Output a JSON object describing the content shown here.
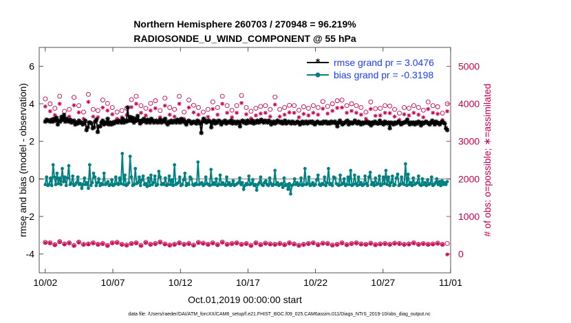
{
  "chart_data": {
    "type": "line",
    "title_line1": "Northern Hemisphere 260703 / 270948 = 96.219%",
    "title_line2": "RADIOSONDE_U_WIND_COMPONENT @ 55 hPa",
    "xlabel": "Oct.01,2019 00:00:00 start",
    "ylabel_left": "rmse and bias (model - observation)",
    "ylabel_right": "# of obs: o=possible; ∗=assimilated",
    "footer": "data file: /Users/raeder/DAI/ATM_forcXX/CAM6_setup/f.e21.FHIST_BGC.f09_025.CAM6assim.011/Diags_NTrS_2019-10/obs_diag_output.nc",
    "x_ticks": [
      "10/02",
      "10/07",
      "10/12",
      "10/17",
      "10/22",
      "10/27",
      "11/01"
    ],
    "x_tick_days": [
      1,
      6,
      11,
      16,
      21,
      26,
      31
    ],
    "xlim": [
      0.55,
      31
    ],
    "ylim_left": [
      -5,
      7
    ],
    "y_ticks_left": [
      -4,
      -2,
      0,
      2,
      4,
      6
    ],
    "ylim_right": [
      -500,
      5500
    ],
    "y_ticks_right": [
      0,
      1000,
      2000,
      3000,
      4000,
      5000
    ],
    "legend_position": "top-right",
    "colors": {
      "rmse": "#000000",
      "bias": "#008080",
      "obs": "#c8004e",
      "zero_line": "#b3b3b3",
      "legend_text": "#1a3cff"
    },
    "series": [
      {
        "name": "rmse grand pr = 3.0476",
        "axis": "left",
        "values": [
          3.05,
          3.15,
          3.1,
          3.1,
          3.05,
          3.15,
          3.05,
          3.2,
          3.1,
          3.25,
          2.9,
          3.1,
          3.05,
          3.3,
          3.15,
          3.4,
          3.05,
          3.2,
          3.1,
          3.05,
          3.15,
          3.0,
          3.05,
          3.1,
          2.9,
          3.0,
          2.95,
          3.1,
          3.0,
          3.0,
          2.9,
          2.95,
          3.1,
          2.6,
          2.75,
          3.0,
          3.0,
          2.95,
          2.7,
          2.75,
          3.05,
          3.15,
          2.5,
          2.8,
          2.8,
          3.0,
          3.1,
          2.9,
          3.0,
          2.95,
          3.2,
          2.9,
          3.0,
          2.9,
          3.0,
          2.95,
          3.05,
          3.05,
          3.0,
          3.1,
          3.05,
          3.0,
          3.2,
          3.0,
          3.1,
          3.05,
          3.8,
          3.1,
          3.3,
          3.1,
          3.25,
          3.0,
          3.2,
          3.1,
          3.35,
          3.1,
          2.95,
          3.1,
          3.05,
          3.2,
          3.1,
          3.0,
          3.15,
          3.05,
          3.0,
          3.2,
          3.1,
          3.0,
          3.05,
          3.1,
          3.0,
          3.05,
          3.15,
          3.0,
          3.1,
          3.05,
          3.2,
          3.0,
          2.9,
          3.05,
          3.0,
          3.1,
          3.0,
          3.05,
          3.1,
          3.0,
          3.15,
          3.05,
          3.0,
          3.2,
          3.05,
          3.1,
          3.0,
          2.9,
          3.05,
          3.1,
          3.05,
          2.95,
          3.0,
          3.05,
          3.0,
          2.95,
          3.1,
          3.05,
          2.95,
          2.45,
          3.05,
          3.2,
          3.1,
          3.0,
          3.05,
          3.1,
          3.05,
          2.75,
          3.0,
          3.1,
          2.95,
          3.05,
          3.0,
          3.1,
          3.05,
          2.9,
          3.0,
          3.05,
          3.1,
          2.95,
          3.0,
          3.05,
          3.0,
          3.1,
          2.95,
          3.05,
          3.0,
          2.95,
          3.05,
          3.0,
          2.8,
          3.05,
          3.1,
          3.0,
          3.05,
          2.95,
          3.1,
          3.0,
          3.05,
          3.0,
          3.1,
          2.95,
          3.05,
          3.0,
          3.1,
          3.0,
          3.05,
          3.15,
          3.05,
          3.0,
          3.1,
          3.05,
          3.0,
          3.1,
          3.05,
          2.9,
          3.0,
          3.05,
          2.95,
          3.0,
          3.1,
          3.05,
          3.0,
          3.05,
          2.95,
          3.0,
          3.1,
          2.95,
          3.0,
          3.05,
          3.0,
          2.95,
          3.05,
          3.0,
          2.95,
          3.0,
          3.05,
          3.0,
          2.9,
          3.0,
          3.05,
          2.95,
          3.0,
          3.05,
          2.95,
          3.0,
          3.05,
          3.0,
          3.05,
          2.95,
          2.9,
          3.0,
          3.05,
          3.0,
          2.95,
          3.0,
          2.95,
          3.05,
          3.0,
          3.05,
          2.95,
          3.0,
          2.95,
          3.05,
          3.0,
          3.0,
          3.05,
          2.95,
          2.8,
          3.0,
          3.1,
          3.0,
          2.9,
          2.95,
          3.0,
          3.05,
          3.1,
          2.9,
          3.0,
          3.0,
          2.95,
          3.0,
          3.1,
          3.0,
          2.95,
          3.05,
          3.0,
          2.9,
          3.0,
          2.95,
          3.0,
          3.0,
          3.05,
          2.95,
          3.0,
          2.85,
          3.0,
          2.95,
          3.05,
          3.0,
          2.95,
          2.95,
          3.1,
          3.0,
          2.95,
          2.9,
          3.05,
          3.0,
          2.95,
          3.0,
          2.7,
          3.0,
          2.95,
          2.9,
          3.0,
          2.95,
          3.0,
          3.05,
          3.0,
          2.9,
          2.95,
          3.0,
          3.0,
          3.05,
          3.15,
          3.0,
          2.9,
          3.0,
          2.95,
          3.0,
          2.9,
          3.0,
          2.95,
          3.05,
          3.0,
          2.85,
          3.0,
          2.95,
          3.0,
          3.05,
          3.0,
          2.95,
          2.9,
          3.0,
          3.1,
          3.0,
          2.9,
          3.05,
          3.0,
          2.95,
          2.9,
          3.0,
          3.05,
          3.0,
          2.95,
          2.7,
          2.6
        ]
      },
      {
        "name": "bias grand pr = -0.3198",
        "axis": "left",
        "values": [
          -0.3,
          0.1,
          -0.35,
          -0.3,
          0.05,
          -0.35,
          0.75,
          0.1,
          -0.3,
          0.3,
          -0.25,
          0.05,
          -0.3,
          0.55,
          -0.15,
          0.1,
          -0.35,
          0.05,
          0.7,
          -0.3,
          -0.25,
          0.15,
          -0.35,
          -0.3,
          -0.2,
          0.1,
          -0.3,
          -0.25,
          -0.5,
          -0.3,
          0.05,
          -0.3,
          -0.2,
          -0.5,
          0.75,
          -0.35,
          -0.2,
          0.3,
          0.1,
          -0.35,
          -0.2,
          0.0,
          -0.35,
          -0.25,
          -0.3,
          0.3,
          -0.3,
          -0.25,
          -0.15,
          -0.35,
          -0.3,
          -0.05,
          -0.35,
          -0.3,
          0.1,
          -0.25,
          -0.3,
          0.05,
          -0.25,
          1.35,
          -0.3,
          0.2,
          -0.35,
          -0.3,
          -0.2,
          1.2,
          0.1,
          -0.35,
          -0.3,
          0.55,
          -0.25,
          -0.2,
          0.1,
          -0.35,
          -0.05,
          0.15,
          -0.3,
          -0.25,
          -0.4,
          0.05,
          -0.35,
          0.2,
          -0.3,
          -0.2,
          0.15,
          -0.35,
          -0.3,
          0.4,
          0.1,
          -0.3,
          -0.25,
          -0.3,
          0.05,
          -0.35,
          -0.3,
          0.15,
          -0.3,
          -0.05,
          -0.35,
          0.75,
          -0.3,
          -0.25,
          -0.2,
          0.1,
          -0.35,
          -0.3,
          -0.05,
          0.3,
          -0.35,
          -0.25,
          -0.3,
          0.1,
          0.0,
          -0.3,
          -0.35,
          -0.25,
          -0.3,
          0.9,
          -0.3,
          -0.25,
          -0.2,
          -0.35,
          -0.3,
          0.1,
          -0.25,
          -0.3,
          -0.35,
          0.5,
          -0.3,
          -0.2,
          -0.3,
          0.0,
          -0.35,
          -0.3,
          0.2,
          -0.3,
          -0.2,
          -0.3,
          -0.35,
          0.1,
          -0.3,
          -0.2,
          -0.35,
          -0.3,
          -0.1,
          -0.35,
          -0.3,
          -0.25,
          -0.2,
          0.05,
          -0.3,
          -0.2,
          -0.55,
          -0.35,
          -0.25,
          -0.3,
          0.15,
          -0.3,
          -0.25,
          -0.05,
          -0.35,
          -0.3,
          -0.6,
          -0.3,
          -0.2,
          0.1,
          -0.3,
          -0.35,
          -0.2,
          -0.1,
          -0.3,
          -0.35,
          0.05,
          -0.25,
          -0.35,
          -0.3,
          0.45,
          -0.3,
          -0.2,
          -0.35,
          -0.3,
          -0.25,
          -0.45,
          0.05,
          -0.35,
          -0.3,
          -0.55,
          -0.25,
          -0.8,
          -0.35,
          -0.3,
          0.0,
          -0.3,
          -0.2,
          -0.35,
          -0.3,
          0.05,
          -0.35,
          -0.3,
          0.55,
          -0.3,
          -0.25,
          0.1,
          -0.35,
          -0.3,
          -0.2,
          -0.35,
          -0.3,
          -0.05,
          0.2,
          -0.3,
          -0.35,
          -0.25,
          -0.3,
          0.1,
          -0.35,
          -0.2,
          0.55,
          -0.3,
          -0.25,
          -0.35,
          0.1,
          0.05,
          -0.25,
          -0.3,
          -0.35,
          0.2,
          -0.3,
          -0.25,
          0.0,
          -0.35,
          -0.3,
          0.1,
          -0.3,
          0.45,
          -0.35,
          -0.3,
          0.2,
          -0.25,
          -0.35,
          0.1,
          -0.3,
          -0.2,
          -0.35,
          -0.3,
          0.15,
          -0.25,
          -0.35,
          0.1,
          0.35,
          -0.3,
          -0.2,
          -0.35,
          0.05,
          -0.3,
          -0.25,
          0.15,
          -0.35,
          -0.3,
          0.1,
          -0.25,
          0.45,
          -0.3,
          0.1,
          -0.35,
          -0.2,
          0.15,
          -0.35,
          -0.3,
          0.05,
          0.25,
          -0.35,
          -0.3,
          0.1,
          -0.25,
          -0.3,
          0.8,
          -0.35,
          0.25,
          -0.3,
          -0.2,
          -0.35,
          0.05,
          -0.3,
          -0.25,
          -0.2,
          0.15,
          -0.3,
          -0.35,
          0.0,
          -0.3,
          -0.2,
          -0.35,
          -0.05,
          -0.3,
          -0.25,
          0.1,
          -0.35,
          -0.3,
          -0.2,
          0.0,
          -0.3,
          -0.15,
          -0.35,
          -0.1,
          -0.3,
          -0.2,
          -0.3,
          -0.15
        ]
      },
      {
        "name": "possible",
        "axis": "right",
        "marker": "o",
        "values": [
          4130,
          4000,
          3880,
          4200,
          3800,
          3850,
          4170,
          3950,
          3780,
          4250,
          3850,
          3820,
          4100,
          4010,
          3900,
          3780,
          3820,
          3880,
          4110,
          4200,
          3950,
          3880,
          4010,
          4080,
          3820,
          4150,
          3900,
          3850,
          4200,
          3780,
          4100,
          3960,
          3900,
          3780,
          3850,
          4050,
          3900,
          4200,
          3950,
          3830,
          3950,
          4220,
          3900,
          3800,
          3880,
          3930,
          3950,
          3850,
          4180,
          3850,
          3900,
          3960,
          3950,
          3830,
          3920,
          3880,
          3950,
          3900,
          4060,
          3930,
          4000,
          4080,
          4100,
          3950,
          4000,
          3950,
          3900,
          3780,
          4050,
          3870,
          3880,
          3950,
          3940,
          3850,
          3750,
          3900,
          3880,
          3950,
          3900,
          3830,
          4050,
          3950,
          3920,
          3750,
          4000
        ]
      },
      {
        "name": "assimilated",
        "axis": "right",
        "marker": "*",
        "values": [
          3930,
          3800,
          3700,
          4000,
          3620,
          3660,
          3960,
          3770,
          3600,
          4050,
          3660,
          3640,
          3900,
          3820,
          3720,
          3600,
          3640,
          3700,
          3910,
          4000,
          3760,
          3690,
          3820,
          3880,
          3640,
          3950,
          3710,
          3660,
          4000,
          3600,
          3900,
          3770,
          3710,
          3590,
          3650,
          3860,
          3710,
          4000,
          3760,
          3640,
          3760,
          4020,
          3720,
          3610,
          3690,
          3740,
          3760,
          3660,
          3980,
          3660,
          3710,
          3770,
          3760,
          3640,
          3730,
          3690,
          3760,
          3710,
          3870,
          3740,
          3810,
          3890,
          3900,
          3760,
          3810,
          3760,
          3710,
          3600,
          3860,
          3680,
          3690,
          3760,
          3750,
          3660,
          3570,
          3720,
          3690,
          3760,
          3710,
          3640,
          3860,
          3760,
          3730,
          3570,
          3800
        ]
      }
    ],
    "obs_bottom_possible": [
      310,
      300,
      250,
      330,
      270,
      300,
      230,
      320,
      260,
      270,
      300,
      260,
      280,
      230,
      300,
      310,
      260,
      240,
      280,
      300,
      230,
      310,
      260,
      280,
      320,
      270,
      240,
      260,
      300,
      260,
      280,
      240,
      310,
      290,
      260,
      300,
      250,
      320,
      260,
      280,
      300,
      260,
      280,
      230,
      300,
      250,
      290,
      270,
      260,
      280,
      250,
      300,
      270,
      230,
      260,
      280,
      300,
      250,
      290,
      280,
      240,
      260,
      300,
      250,
      280,
      300,
      270,
      260,
      290,
      250,
      270,
      280,
      260,
      290,
      280,
      260,
      270,
      300,
      260,
      280,
      260,
      270,
      290,
      260,
      280
    ],
    "obs_bottom_assimilated": [
      300,
      290,
      240,
      320,
      260,
      290,
      220,
      310,
      250,
      260,
      290,
      250,
      270,
      220,
      290,
      300,
      250,
      230,
      270,
      290,
      220,
      300,
      250,
      270,
      310,
      260,
      230,
      250,
      290,
      250,
      270,
      230,
      300,
      280,
      250,
      290,
      240,
      310,
      250,
      270,
      290,
      250,
      270,
      220,
      290,
      240,
      280,
      260,
      250,
      270,
      240,
      290,
      260,
      220,
      250,
      270,
      290,
      240,
      280,
      270,
      230,
      250,
      290,
      240,
      270,
      290,
      260,
      250,
      280,
      240,
      260,
      270,
      250,
      280,
      270,
      250,
      260,
      290,
      250,
      270,
      250,
      260,
      280,
      250,
      -10
    ]
  }
}
